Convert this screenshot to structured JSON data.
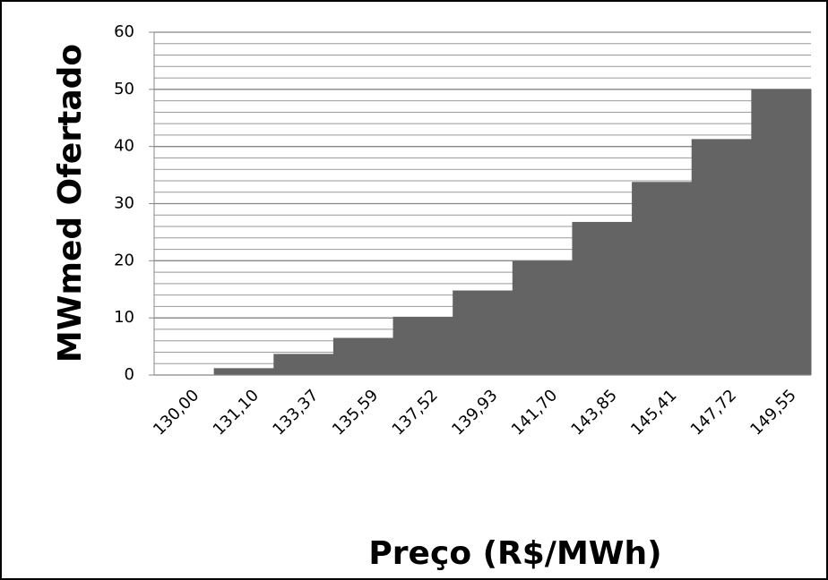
{
  "chart_data": {
    "type": "bar",
    "x_label": "Preço (R$/MWh)",
    "y_label": "MWmed Ofertado",
    "categories": [
      "130,00",
      "131,10",
      "133,37",
      "135,59",
      "137,52",
      "139,93",
      "141,70",
      "143,85",
      "145,41",
      "147,72",
      "149,55"
    ],
    "values": [
      0,
      1.2,
      3.7,
      6.5,
      10.2,
      14.8,
      20,
      26.8,
      33.8,
      41.3,
      50
    ],
    "color": "#646464",
    "ylim": [
      0,
      60
    ],
    "yticks": [
      0,
      10,
      20,
      30,
      40,
      50,
      60
    ],
    "grid": true,
    "minor_grid": 2
  }
}
